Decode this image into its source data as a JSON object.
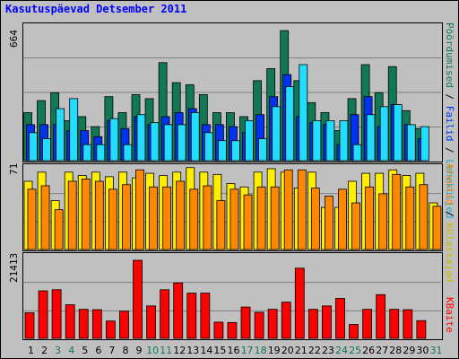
{
  "title": "Kasutuspäevad Detsember 2011",
  "colors": {
    "visits": "#117755",
    "pages": "#0033ee",
    "files": "#22ddff",
    "hits": "#ff8800",
    "sites": "#ffee00",
    "kbytes": "#ff0000",
    "weekend": "#117755",
    "weekday": "#000000"
  },
  "chart_data": [
    {
      "type": "bar",
      "ylabel": "664",
      "legend": {
        "visits": "Külastajad",
        "files": "Failid",
        "pages": "Leheküljed"
      },
      "ylim": [
        0,
        664
      ],
      "categories": [
        "1",
        "2",
        "3",
        "4",
        "5",
        "6",
        "7",
        "8",
        "9",
        "10",
        "11",
        "12",
        "13",
        "14",
        "15",
        "16",
        "17",
        "18",
        "19",
        "20",
        "21",
        "22",
        "23",
        "24",
        "25",
        "26",
        "27",
        "28",
        "29",
        "30",
        "31"
      ],
      "series": [
        {
          "name": "Pöördumised",
          "values": [
            240,
            300,
            340,
            200,
            220,
            170,
            320,
            240,
            330,
            310,
            490,
            390,
            380,
            330,
            240,
            240,
            220,
            400,
            460,
            650,
            400,
            290,
            240,
            150,
            310,
            480,
            340,
            470,
            250,
            160,
            0
          ]
        },
        {
          "name": "Failid",
          "values": [
            180,
            180,
            180,
            150,
            150,
            120,
            200,
            160,
            220,
            180,
            220,
            240,
            260,
            180,
            180,
            170,
            140,
            230,
            320,
            430,
            220,
            190,
            180,
            80,
            230,
            320,
            170,
            280,
            180,
            110,
            0
          ]
        },
        {
          "name": "Leheküljed",
          "values": [
            140,
            110,
            260,
            310,
            80,
            80,
            210,
            80,
            230,
            190,
            180,
            180,
            240,
            140,
            100,
            100,
            200,
            110,
            270,
            370,
            480,
            200,
            200,
            200,
            80,
            230,
            270,
            280,
            180,
            170,
            0
          ]
        }
      ]
    },
    {
      "type": "bar",
      "ylabel": "71",
      "legend": {
        "hits": "Arvutid",
        "sites": "Külastajad"
      },
      "ylim": [
        0,
        71
      ],
      "categories": [
        "1",
        "2",
        "3",
        "4",
        "5",
        "6",
        "7",
        "8",
        "9",
        "10",
        "11",
        "12",
        "13",
        "14",
        "15",
        "16",
        "17",
        "18",
        "19",
        "20",
        "21",
        "22",
        "23",
        "24",
        "25",
        "26",
        "27",
        "28",
        "29",
        "30",
        "31"
      ],
      "series": [
        {
          "name": "Arvutid",
          "values": [
            53,
            56,
            35,
            60,
            62,
            60,
            53,
            57,
            70,
            55,
            55,
            60,
            53,
            56,
            43,
            53,
            48,
            55,
            55,
            70,
            70,
            54,
            47,
            53,
            41,
            55,
            49,
            66,
            55,
            57,
            38
          ]
        },
        {
          "name": "Külastajad",
          "values": [
            60,
            68,
            43,
            68,
            65,
            68,
            64,
            68,
            63,
            67,
            65,
            68,
            72,
            68,
            66,
            58,
            55,
            68,
            71,
            68,
            54,
            68,
            37,
            37,
            60,
            67,
            67,
            70,
            65,
            67,
            41
          ]
        }
      ]
    },
    {
      "type": "bar",
      "ylabel": "21413",
      "legend": {
        "kbytes": "KBaite"
      },
      "ylim": [
        0,
        21413
      ],
      "categories": [
        "1",
        "2",
        "3",
        "4",
        "5",
        "6",
        "7",
        "8",
        "9",
        "10",
        "11",
        "12",
        "13",
        "14",
        "15",
        "16",
        "17",
        "18",
        "19",
        "20",
        "21",
        "22",
        "23",
        "24",
        "25",
        "26",
        "27",
        "28",
        "29",
        "30",
        "31"
      ],
      "series": [
        {
          "name": "KBaite",
          "values": [
            6800,
            12600,
            12900,
            8900,
            7700,
            7600,
            4600,
            7200,
            20700,
            8600,
            12900,
            14700,
            12000,
            12000,
            4300,
            4200,
            8300,
            6900,
            7700,
            9600,
            18600,
            7700,
            8600,
            10600,
            3700,
            7700,
            11600,
            7700,
            7600,
            4700,
            0
          ]
        }
      ]
    }
  ],
  "day_labels": [
    "1",
    "2",
    "3",
    "4",
    "5",
    "6",
    "7",
    "8",
    "9",
    "10",
    "11",
    "12",
    "13",
    "14",
    "15",
    "16",
    "17",
    "18",
    "19",
    "20",
    "21",
    "22",
    "23",
    "24",
    "25",
    "26",
    "27",
    "28",
    "29",
    "30",
    "31"
  ],
  "weekend_days": [
    3,
    4,
    10,
    11,
    17,
    18,
    24,
    25,
    31
  ],
  "right_labels": {
    "top": "Pöördumised / Failid / Leheküljed",
    "middle": "Arvutid / Külastajad",
    "bottom": "KBaite"
  }
}
